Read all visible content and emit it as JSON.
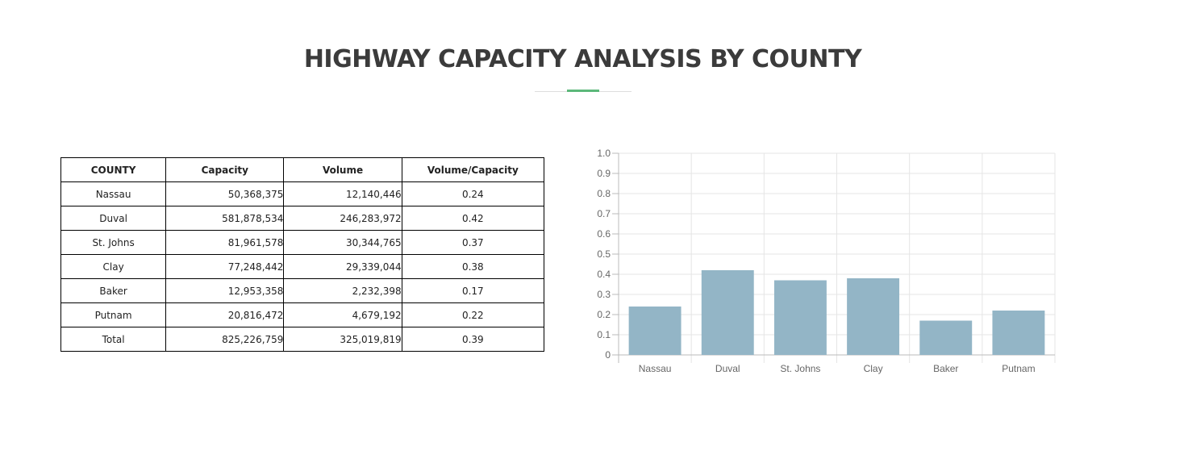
{
  "page": {
    "title": "HIGHWAY CAPACITY ANALYSIS BY COUNTY"
  },
  "table": {
    "headers": [
      "COUNTY",
      "Capacity",
      "Volume",
      "Volume/Capacity"
    ],
    "rows": [
      [
        "Nassau",
        "50,368,375",
        "12,140,446",
        "0.24"
      ],
      [
        "Duval",
        "581,878,534",
        "246,283,972",
        "0.42"
      ],
      [
        "St. Johns",
        "81,961,578",
        "30,344,765",
        "0.37"
      ],
      [
        "Clay",
        "77,248,442",
        "29,339,044",
        "0.38"
      ],
      [
        "Baker",
        "12,953,358",
        "2,232,398",
        "0.17"
      ],
      [
        "Putnam",
        "20,816,472",
        "4,679,192",
        "0.22"
      ],
      [
        "Total",
        "825,226,759",
        "325,019,819",
        "0.39"
      ]
    ]
  },
  "colors": {
    "bar": "#93b5c6",
    "accent": "#5cb87a",
    "grid": "#e5e5e5"
  },
  "chart_data": {
    "type": "bar",
    "categories": [
      "Nassau",
      "Duval",
      "St. Johns",
      "Clay",
      "Baker",
      "Putnam"
    ],
    "values": [
      0.24,
      0.42,
      0.37,
      0.38,
      0.17,
      0.22
    ],
    "ylim": [
      0,
      1.0
    ],
    "yticks": [
      "0",
      "0.1",
      "0.2",
      "0.3",
      "0.4",
      "0.5",
      "0.6",
      "0.7",
      "0.8",
      "0.9",
      "1.0"
    ],
    "grid": true,
    "legend": "none"
  }
}
